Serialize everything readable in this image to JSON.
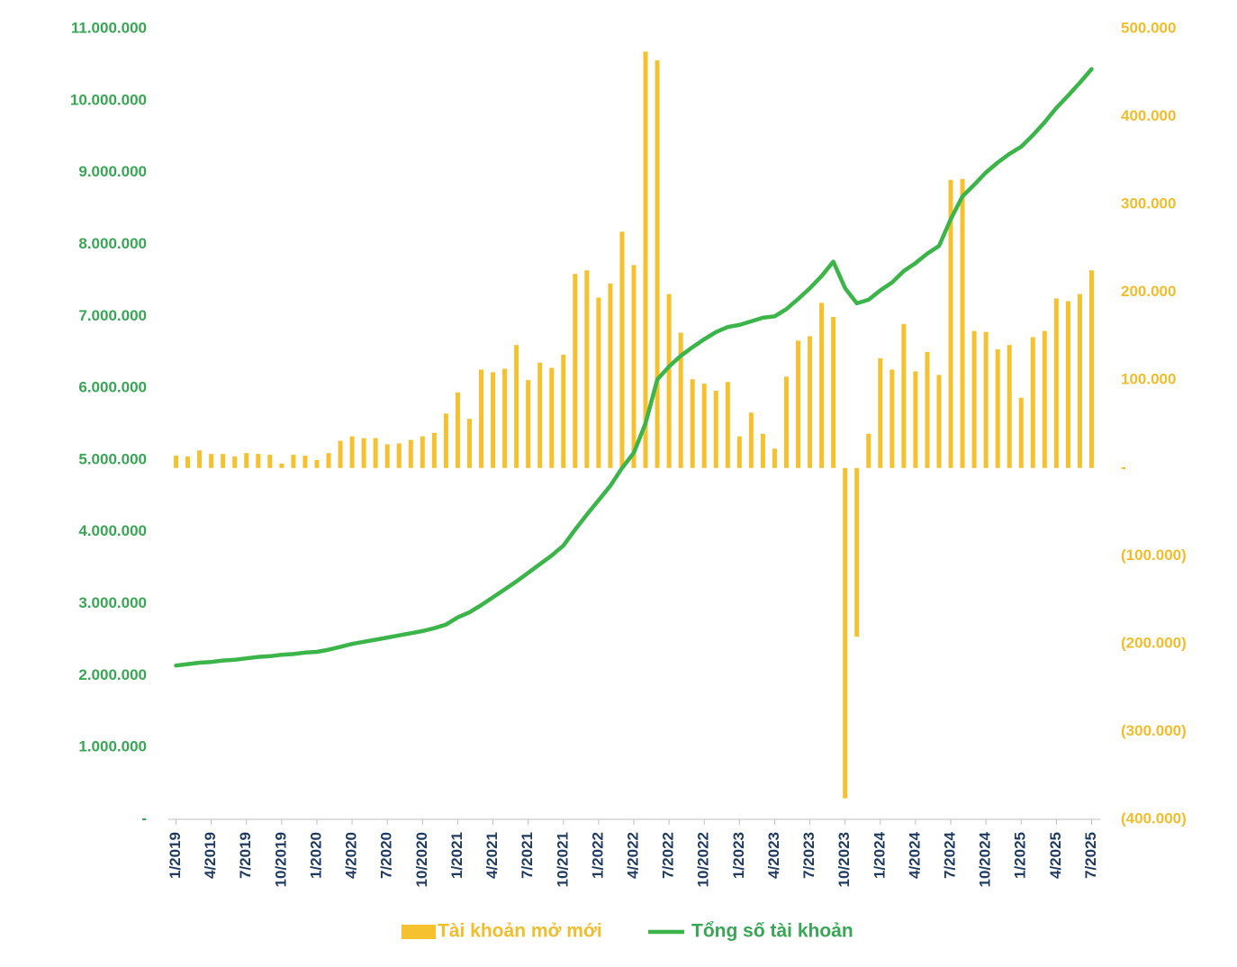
{
  "chart_data": {
    "type": "combo",
    "categories": [
      "1/2019",
      null,
      null,
      "4/2019",
      null,
      null,
      "7/2019",
      null,
      null,
      "10/2019",
      null,
      null,
      "1/2020",
      null,
      null,
      "4/2020",
      null,
      null,
      "7/2020",
      null,
      null,
      "10/2020",
      null,
      null,
      "1/2021",
      null,
      null,
      "4/2021",
      null,
      null,
      "7/2021",
      null,
      null,
      "10/2021",
      null,
      null,
      "1/2022",
      null,
      null,
      "4/2022",
      null,
      null,
      "7/2022",
      null,
      null,
      "10/2022",
      null,
      null,
      "1/2023",
      null,
      null,
      "4/2023",
      null,
      null,
      "7/2023",
      null,
      null,
      "10/2023",
      null,
      null,
      "1/2024",
      null,
      null,
      "4/2024",
      null,
      null,
      "7/2024",
      null,
      null,
      "10/2024",
      null,
      null,
      "1/2025",
      null,
      null,
      "4/2025",
      null,
      null,
      "7/2025"
    ],
    "series": [
      {
        "name": "Tài khoản mở mới",
        "type": "bar",
        "axis": "y2",
        "color": "#f5c12e",
        "values": [
          14000,
          13000,
          20000,
          16000,
          16000,
          13000,
          17000,
          16000,
          15000,
          5000,
          15000,
          14000,
          9000,
          17000,
          31000,
          36000,
          34000,
          34000,
          27000,
          28000,
          32000,
          36000,
          40000,
          62000,
          86000,
          56000,
          112000,
          109000,
          113000,
          140000,
          100000,
          120000,
          114000,
          129000,
          221000,
          225000,
          194000,
          210000,
          269000,
          231000,
          474000,
          464000,
          198000,
          154000,
          101000,
          96000,
          88000,
          98000,
          36000,
          63000,
          39000,
          22000,
          104000,
          145000,
          150000,
          188000,
          172000,
          -376000,
          -192000,
          39000,
          125000,
          112000,
          164000,
          110000,
          132000,
          106000,
          328000,
          329000,
          156000,
          155000,
          135000,
          140000,
          80000,
          149000,
          156000,
          193000,
          190000,
          198000,
          225000
        ]
      },
      {
        "name": "Tổng số tài khoản",
        "type": "line",
        "color": "#3bb44a",
        "values": [
          2140000,
          2160000,
          2180000,
          2190000,
          2210000,
          2220000,
          2240000,
          2260000,
          2270000,
          2290000,
          2300000,
          2320000,
          2330000,
          2360000,
          2400000,
          2440000,
          2470000,
          2500000,
          2530000,
          2560000,
          2590000,
          2620000,
          2660000,
          2710000,
          2810000,
          2880000,
          2980000,
          3090000,
          3200000,
          3310000,
          3430000,
          3550000,
          3670000,
          3810000,
          4030000,
          4240000,
          4440000,
          4640000,
          4890000,
          5100000,
          5510000,
          6120000,
          6300000,
          6450000,
          6570000,
          6680000,
          6780000,
          6850000,
          6880000,
          6930000,
          6980000,
          7000000,
          7100000,
          7240000,
          7390000,
          7560000,
          7760000,
          7390000,
          7180000,
          7230000,
          7360000,
          7470000,
          7630000,
          7740000,
          7870000,
          7980000,
          8350000,
          8670000,
          8830000,
          9000000,
          9140000,
          9260000,
          9360000,
          9520000,
          9700000,
          9900000,
          10070000,
          10250000,
          10440000
        ]
      }
    ],
    "ylim": [
      0,
      11000000
    ],
    "yticks": [
      {
        "value": 0,
        "label": "-"
      },
      {
        "value": 1000000,
        "label": "1.000.000"
      },
      {
        "value": 2000000,
        "label": "2.000.000"
      },
      {
        "value": 3000000,
        "label": "3.000.000"
      },
      {
        "value": 4000000,
        "label": "4.000.000"
      },
      {
        "value": 5000000,
        "label": "5.000.000"
      },
      {
        "value": 6000000,
        "label": "6.000.000"
      },
      {
        "value": 7000000,
        "label": "7.000.000"
      },
      {
        "value": 8000000,
        "label": "8.000.000"
      },
      {
        "value": 9000000,
        "label": "9.000.000"
      },
      {
        "value": 10000000,
        "label": "10.000.000"
      },
      {
        "value": 11000000,
        "label": "11.000.000"
      }
    ],
    "y2lim": [
      -400000,
      500000
    ],
    "y2ticks": [
      {
        "value": -400000,
        "label": "(400.000)"
      },
      {
        "value": -300000,
        "label": "(300.000)"
      },
      {
        "value": -200000,
        "label": "(200.000)"
      },
      {
        "value": -100000,
        "label": "(100.000)"
      },
      {
        "value": 0,
        "label": "-"
      },
      {
        "value": 100000,
        "label": "100.000"
      },
      {
        "value": 200000,
        "label": "200.000"
      },
      {
        "value": 300000,
        "label": "300.000"
      },
      {
        "value": 400000,
        "label": "400.000"
      },
      {
        "value": 500000,
        "label": "500.000"
      }
    ],
    "ytick_color": "#3aa655",
    "y2tick_color": "#f0bd2e",
    "xtick_color": "#1f3a5f",
    "grid": false,
    "legend": "bottom"
  }
}
